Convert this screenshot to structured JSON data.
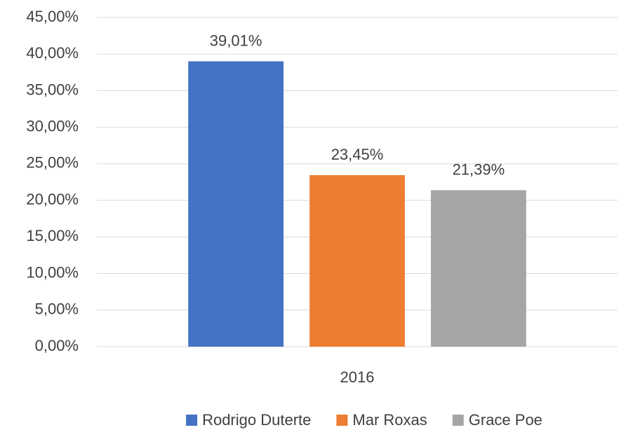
{
  "chart_data": {
    "type": "bar",
    "categories": [
      "2016"
    ],
    "series": [
      {
        "name": "Rodrigo Duterte",
        "color": "#4472c4",
        "values": [
          39.01
        ],
        "value_labels": [
          "39,01%"
        ]
      },
      {
        "name": "Mar Roxas",
        "color": "#ed7d31",
        "values": [
          23.45
        ],
        "value_labels": [
          "23,45%"
        ]
      },
      {
        "name": "Grace Poe",
        "color": "#a5a5a5",
        "values": [
          21.39
        ],
        "value_labels": [
          "21,39%"
        ]
      }
    ],
    "ylim": [
      0,
      45
    ],
    "yticks": [
      {
        "value": 0,
        "label": "0,00%"
      },
      {
        "value": 5,
        "label": "5,00%"
      },
      {
        "value": 10,
        "label": "10,00%"
      },
      {
        "value": 15,
        "label": "15,00%"
      },
      {
        "value": 20,
        "label": "20,00%"
      },
      {
        "value": 25,
        "label": "25,00%"
      },
      {
        "value": 30,
        "label": "30,00%"
      },
      {
        "value": 35,
        "label": "35,00%"
      },
      {
        "value": 40,
        "label": "40,00%"
      },
      {
        "value": 45,
        "label": "45,00%"
      }
    ],
    "grid": true,
    "legend": "bottom"
  }
}
